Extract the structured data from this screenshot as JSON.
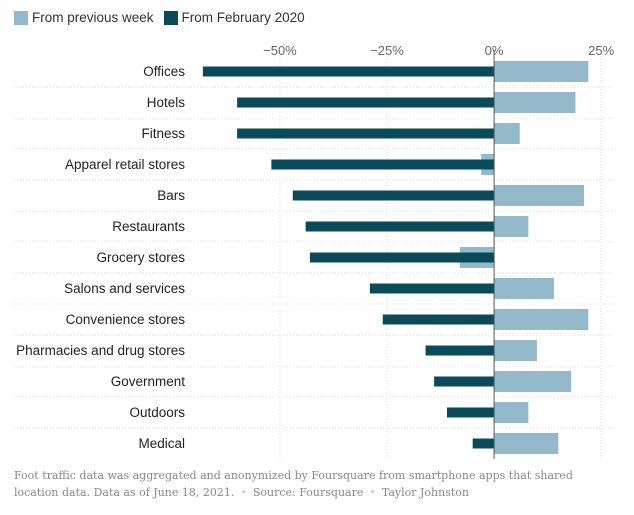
{
  "colors": {
    "previous_week": "#93b9cb",
    "feb_2020": "#0a4a5a",
    "grid": "#dddddd",
    "zero": "#555555"
  },
  "legend": {
    "previous_week": "From previous week",
    "feb_2020": "From February 2020"
  },
  "chart_data": {
    "type": "bar",
    "orientation": "horizontal",
    "categories": [
      "Offices",
      "Hotels",
      "Fitness",
      "Apparel retail stores",
      "Bars",
      "Restaurants",
      "Grocery stores",
      "Salons and services",
      "Convenience stores",
      "Pharmacies and drug stores",
      "Government",
      "Outdoors",
      "Medical"
    ],
    "series": [
      {
        "name": "From previous week",
        "values": [
          22,
          19,
          6,
          -3,
          21,
          8,
          -8,
          14,
          22,
          10,
          18,
          8,
          15
        ]
      },
      {
        "name": "From February 2020",
        "values": [
          -68,
          -60,
          -60,
          -52,
          -47,
          -44,
          -43,
          -29,
          -26,
          -16,
          -14,
          -11,
          -5
        ]
      }
    ],
    "x_ticks": [
      {
        "value": -50,
        "label": "−50%"
      },
      {
        "value": -25,
        "label": "−25%"
      },
      {
        "value": 0,
        "label": "0%"
      },
      {
        "value": 25,
        "label": "25%"
      }
    ],
    "xlim": [
      -71,
      28
    ],
    "grid": true,
    "legend_position": "top-left"
  },
  "footnote": {
    "text": "Foot traffic data was aggregated and anonymized by Foursquare from smartphone apps that shared location data. Data as of June 18, 2021.",
    "source": "Source: Foursquare",
    "credit": "Taylor Johnston"
  }
}
